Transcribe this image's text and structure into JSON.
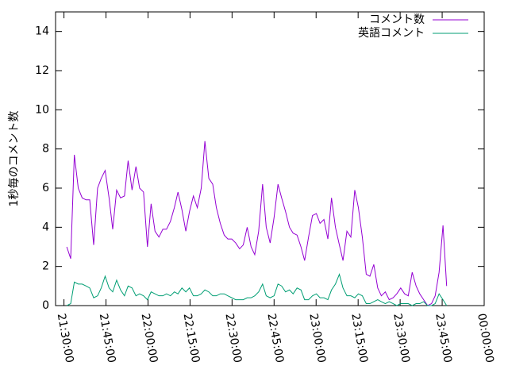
{
  "chart_data": {
    "type": "line",
    "ylabel": "1秒毎のコメント数",
    "legend": "upper right",
    "xlim": [
      1287,
      1440
    ],
    "xticks": [
      {
        "value": 1290,
        "label": "21:30:00"
      },
      {
        "value": 1305,
        "label": "21:45:00"
      },
      {
        "value": 1320,
        "label": "22:00:00"
      },
      {
        "value": 1335,
        "label": "22:15:00"
      },
      {
        "value": 1350,
        "label": "22:30:00"
      },
      {
        "value": 1365,
        "label": "22:45:00"
      },
      {
        "value": 1380,
        "label": "23:00:00"
      },
      {
        "value": 1395,
        "label": "23:15:00"
      },
      {
        "value": 1410,
        "label": "23:30:00"
      },
      {
        "value": 1425,
        "label": "23:45:00"
      },
      {
        "value": 1440,
        "label": "00:00:00"
      }
    ],
    "ylim": [
      0,
      15
    ],
    "yticks": [
      0,
      2,
      4,
      6,
      8,
      10,
      12,
      14
    ],
    "x": [
      1291.0,
      1292.4,
      1293.7,
      1295.1,
      1296.5,
      1297.9,
      1299.2,
      1300.6,
      1302.0,
      1303.3,
      1304.7,
      1306.1,
      1307.4,
      1308.8,
      1310.2,
      1311.6,
      1312.9,
      1314.3,
      1315.7,
      1317.0,
      1318.4,
      1319.8,
      1321.1,
      1322.5,
      1323.9,
      1325.3,
      1326.6,
      1328.0,
      1329.4,
      1330.7,
      1332.1,
      1333.5,
      1334.8,
      1336.2,
      1337.6,
      1339.0,
      1340.3,
      1341.7,
      1343.1,
      1344.4,
      1345.8,
      1347.2,
      1348.5,
      1349.9,
      1351.3,
      1352.7,
      1354.0,
      1355.4,
      1356.8,
      1358.1,
      1359.5,
      1360.9,
      1362.2,
      1363.6,
      1365.0,
      1366.4,
      1367.7,
      1369.1,
      1370.5,
      1371.8,
      1373.2,
      1374.6,
      1375.9,
      1377.3,
      1378.7,
      1380.1,
      1381.4,
      1382.8,
      1384.2,
      1385.5,
      1386.9,
      1388.3,
      1389.6,
      1391.0,
      1392.4,
      1393.8,
      1395.1,
      1396.5,
      1397.9,
      1399.2,
      1400.6,
      1402.0,
      1403.3,
      1404.7,
      1406.1,
      1407.5,
      1408.8,
      1410.2,
      1411.6,
      1412.9,
      1414.3,
      1415.7,
      1417.0,
      1418.4,
      1419.8,
      1421.2,
      1422.5,
      1423.9,
      1425.3,
      1426.6
    ],
    "series": [
      {
        "name": "コメント数",
        "color": "#9400d3",
        "values": [
          3.0,
          2.4,
          7.7,
          6.0,
          5.5,
          5.4,
          5.4,
          3.1,
          6.0,
          6.5,
          6.9,
          5.5,
          3.9,
          5.9,
          5.5,
          5.6,
          7.4,
          5.9,
          7.1,
          6.0,
          5.8,
          3.0,
          5.2,
          3.8,
          3.5,
          3.9,
          3.9,
          4.3,
          5.0,
          5.8,
          4.9,
          3.8,
          4.8,
          5.6,
          5.0,
          6.0,
          8.4,
          6.5,
          6.2,
          5.0,
          4.2,
          3.6,
          3.4,
          3.4,
          3.2,
          2.9,
          3.1,
          4.0,
          3.0,
          2.6,
          3.8,
          6.2,
          4.0,
          3.2,
          4.5,
          6.2,
          5.5,
          4.8,
          4.0,
          3.7,
          3.6,
          3.0,
          2.3,
          3.5,
          4.6,
          4.7,
          4.2,
          4.4,
          3.4,
          5.5,
          4.0,
          3.1,
          2.3,
          3.8,
          3.5,
          5.9,
          5.0,
          3.5,
          1.6,
          1.5,
          2.1,
          0.9,
          0.5,
          0.7,
          0.3,
          0.4,
          0.6,
          0.9,
          0.6,
          0.5,
          1.7,
          1.0,
          0.6,
          0.3,
          0.0,
          0.1,
          0.5,
          1.7,
          4.1,
          1.0
        ]
      },
      {
        "name": "英語コメント",
        "color": "#009e73",
        "values": [
          0.0,
          0.1,
          1.2,
          1.1,
          1.1,
          1.0,
          0.9,
          0.4,
          0.5,
          0.9,
          1.5,
          0.9,
          0.7,
          1.3,
          0.8,
          0.5,
          1.0,
          0.9,
          0.5,
          0.6,
          0.5,
          0.3,
          0.7,
          0.6,
          0.5,
          0.5,
          0.6,
          0.5,
          0.7,
          0.6,
          0.9,
          0.7,
          0.9,
          0.5,
          0.5,
          0.6,
          0.8,
          0.7,
          0.5,
          0.5,
          0.6,
          0.6,
          0.5,
          0.4,
          0.3,
          0.3,
          0.3,
          0.4,
          0.4,
          0.5,
          0.7,
          1.1,
          0.5,
          0.4,
          0.5,
          1.1,
          1.0,
          0.7,
          0.8,
          0.6,
          0.9,
          0.8,
          0.3,
          0.3,
          0.5,
          0.6,
          0.4,
          0.4,
          0.3,
          0.8,
          1.1,
          1.6,
          0.9,
          0.5,
          0.5,
          0.4,
          0.6,
          0.5,
          0.1,
          0.1,
          0.2,
          0.3,
          0.2,
          0.1,
          0.2,
          0.1,
          0.0,
          0.1,
          0.1,
          0.1,
          0.0,
          0.1,
          0.1,
          0.2,
          0.0,
          0.0,
          0.1,
          0.6,
          0.3,
          0.0
        ]
      }
    ]
  }
}
